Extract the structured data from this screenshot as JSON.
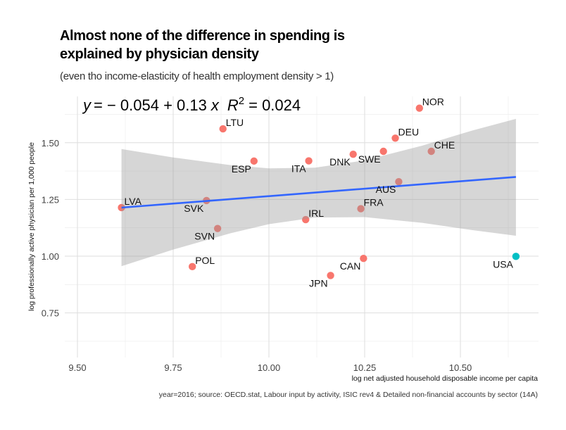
{
  "title_line1": "Almost none of the difference in spending is",
  "title_line2": "explained by physician density",
  "subtitle": "(even tho income-elasticity of health employment density > 1)",
  "caption": "year=2016; source: OECD.stat, Labour input by activity, ISIC rev4 & Detailed non-financial accounts by sector (14A)",
  "chart_data": {
    "type": "scatter",
    "xlabel": "log net adjusted household disposable income per capita",
    "ylabel": "log professionally active physician per 1,000 people",
    "xlim": [
      9.467,
      10.67
    ],
    "ylim": [
      0.59,
      1.71
    ],
    "x_ticks": [
      9.5,
      9.75,
      10.0,
      10.25,
      10.5
    ],
    "x_tick_labels": [
      "9.50",
      "9.75",
      "10.00",
      "10.25",
      "10.50"
    ],
    "y_ticks": [
      0.75,
      1.0,
      1.25,
      1.5
    ],
    "y_tick_labels": [
      "0.75",
      "1.00",
      "1.25",
      "1.50"
    ],
    "grid": true,
    "legend": "none",
    "colors": {
      "default": "#F8766D",
      "highlight": "#00BFC4",
      "fit_line": "#3366FF",
      "ribbon": "#999999"
    },
    "equation": {
      "lhs": "y",
      "rhs": "= − 0.054 + 0.13",
      "var": "x",
      "r2_label": "R",
      "r2_sup": "2",
      "r2_value": "= 0.024"
    },
    "points": [
      {
        "label": "LVA",
        "x": 9.615,
        "y": 1.214,
        "group": "default",
        "label_pos": "above-right"
      },
      {
        "label": "SVK",
        "x": 9.837,
        "y": 1.245,
        "group": "default",
        "label_pos": "below-left"
      },
      {
        "label": "SVN",
        "x": 9.866,
        "y": 1.122,
        "group": "default",
        "label_pos": "below-left"
      },
      {
        "label": "POL",
        "x": 9.8,
        "y": 0.954,
        "group": "default",
        "label_pos": "above-right"
      },
      {
        "label": "LTU",
        "x": 9.88,
        "y": 1.561,
        "group": "default",
        "label_pos": "above-right"
      },
      {
        "label": "ESP",
        "x": 9.961,
        "y": 1.419,
        "group": "default",
        "label_pos": "below-left"
      },
      {
        "label": "ITA",
        "x": 10.104,
        "y": 1.42,
        "group": "default",
        "label_pos": "below-left"
      },
      {
        "label": "IRL",
        "x": 10.096,
        "y": 1.161,
        "group": "default",
        "label_pos": "above-right"
      },
      {
        "label": "DNK",
        "x": 10.22,
        "y": 1.449,
        "group": "default",
        "label_pos": "below-left"
      },
      {
        "label": "SWE",
        "x": 10.299,
        "y": 1.462,
        "group": "default",
        "label_pos": "below-left"
      },
      {
        "label": "DEU",
        "x": 10.33,
        "y": 1.52,
        "group": "default",
        "label_pos": "above-right"
      },
      {
        "label": "NOR",
        "x": 10.393,
        "y": 1.652,
        "group": "default",
        "label_pos": "above-right"
      },
      {
        "label": "CHE",
        "x": 10.424,
        "y": 1.462,
        "group": "default",
        "label_pos": "above-right"
      },
      {
        "label": "AUS",
        "x": 10.339,
        "y": 1.328,
        "group": "default",
        "label_pos": "below-left"
      },
      {
        "label": "FRA",
        "x": 10.24,
        "y": 1.209,
        "group": "default",
        "label_pos": "above-right"
      },
      {
        "label": "CAN",
        "x": 10.247,
        "y": 0.99,
        "group": "default",
        "label_pos": "below-left"
      },
      {
        "label": "JPN",
        "x": 10.161,
        "y": 0.915,
        "group": "default",
        "label_pos": "below-left"
      },
      {
        "label": "USA",
        "x": 10.645,
        "y": 0.999,
        "group": "highlight",
        "label_pos": "below-left"
      }
    ],
    "fit_line": {
      "x": [
        9.615,
        10.645
      ],
      "y": [
        1.214,
        1.349
      ]
    },
    "confidence_band": {
      "x": [
        9.615,
        9.75,
        9.9,
        10.0,
        10.12,
        10.25,
        10.4,
        10.53,
        10.645
      ],
      "lower": [
        0.956,
        1.029,
        1.101,
        1.141,
        1.17,
        1.172,
        1.147,
        1.115,
        1.09
      ],
      "upper": [
        1.472,
        1.435,
        1.401,
        1.387,
        1.39,
        1.422,
        1.487,
        1.553,
        1.605
      ]
    }
  }
}
